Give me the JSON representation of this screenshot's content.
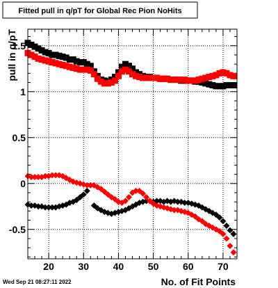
{
  "chart_data": {
    "type": "scatter",
    "title": "Fitted pull in q/pT for Global Rec Pion NoHits",
    "xlabel": "No. of Fit Points",
    "ylabel": "pull in q/pT",
    "xlim": [
      14,
      74
    ],
    "ylim": [
      -0.82,
      1.68
    ],
    "grid": true,
    "x_ticks": [
      20,
      30,
      40,
      50,
      60,
      70
    ],
    "x_tick_labels": [
      "20",
      "30",
      "40",
      "50",
      "60",
      "70"
    ],
    "y_ticks": [
      -0.5,
      0,
      0.5,
      1,
      1.5
    ],
    "y_tick_labels": [
      "-0.5",
      "0",
      "0.5",
      "1",
      "1.5"
    ],
    "series": [
      {
        "color": "#000000",
        "marker": "square",
        "x": [
          14,
          15,
          16,
          17,
          18,
          19,
          20,
          21,
          22,
          23,
          24,
          25,
          26,
          27,
          28,
          29,
          30,
          31,
          32,
          33,
          34,
          35,
          36,
          37,
          38,
          39,
          40,
          41,
          42,
          43,
          44,
          45,
          46,
          47,
          48,
          49,
          50,
          51,
          52,
          53,
          54,
          55,
          56,
          57,
          58,
          59,
          60,
          61,
          62,
          63,
          64,
          65,
          66,
          67,
          68,
          69,
          70,
          71,
          72,
          73
        ],
        "y": [
          1.53,
          1.51,
          1.49,
          1.47,
          1.45,
          1.43,
          1.42,
          1.4,
          1.4,
          1.39,
          1.38,
          1.37,
          1.35,
          1.35,
          1.33,
          1.32,
          1.32,
          1.3,
          1.28,
          1.22,
          1.17,
          1.13,
          1.12,
          1.11,
          1.13,
          1.16,
          1.21,
          1.27,
          1.3,
          1.28,
          1.25,
          1.21,
          1.19,
          1.17,
          1.16,
          1.16,
          1.15,
          1.15,
          1.14,
          1.14,
          1.14,
          1.13,
          1.13,
          1.13,
          1.12,
          1.12,
          1.12,
          1.12,
          1.11,
          1.11,
          1.1,
          1.09,
          1.08,
          1.07,
          1.06,
          1.06,
          1.06,
          1.07,
          1.07,
          1.07
        ]
      },
      {
        "color": "#ff0000",
        "marker": "square",
        "x": [
          14,
          15,
          16,
          17,
          18,
          19,
          20,
          21,
          22,
          23,
          24,
          25,
          26,
          27,
          28,
          29,
          30,
          31,
          32,
          33,
          34,
          35,
          36,
          37,
          38,
          39,
          40,
          41,
          42,
          43,
          44,
          45,
          46,
          47,
          48,
          49,
          50,
          51,
          52,
          53,
          54,
          55,
          56,
          57,
          58,
          59,
          60,
          61,
          62,
          63,
          64,
          65,
          66,
          67,
          68,
          69,
          70,
          71,
          72,
          73
        ],
        "y": [
          1.42,
          1.4,
          1.38,
          1.36,
          1.35,
          1.34,
          1.33,
          1.32,
          1.31,
          1.3,
          1.29,
          1.28,
          1.27,
          1.26,
          1.25,
          1.24,
          1.24,
          1.24,
          1.23,
          1.19,
          1.14,
          1.11,
          1.09,
          1.09,
          1.1,
          1.12,
          1.17,
          1.22,
          1.24,
          1.22,
          1.19,
          1.17,
          1.16,
          1.15,
          1.15,
          1.15,
          1.15,
          1.15,
          1.14,
          1.14,
          1.14,
          1.13,
          1.13,
          1.13,
          1.13,
          1.13,
          1.12,
          1.12,
          1.12,
          1.13,
          1.14,
          1.15,
          1.16,
          1.17,
          1.18,
          1.2,
          1.21,
          1.2,
          1.18,
          1.17
        ]
      },
      {
        "color": "#000000",
        "marker": "diamond",
        "x": [
          14,
          15,
          16,
          17,
          18,
          19,
          20,
          21,
          22,
          23,
          24,
          25,
          26,
          27,
          28,
          29,
          30,
          31,
          32,
          33,
          34,
          35,
          36,
          37,
          38,
          39,
          40,
          41,
          42,
          43,
          44,
          45,
          46,
          47,
          48,
          49,
          50,
          51,
          52,
          53,
          54,
          55,
          56,
          57,
          58,
          59,
          60,
          61,
          62,
          63,
          64,
          65,
          66,
          67,
          68,
          69,
          70,
          71,
          72,
          73
        ],
        "y": [
          -0.23,
          -0.24,
          -0.24,
          -0.25,
          -0.25,
          -0.26,
          -0.26,
          -0.26,
          -0.26,
          -0.25,
          -0.24,
          -0.23,
          -0.21,
          -0.2,
          -0.18,
          -0.15,
          -0.12,
          -0.08,
          -0.02,
          -0.24,
          -0.27,
          -0.29,
          -0.31,
          -0.32,
          -0.33,
          -0.32,
          -0.31,
          -0.3,
          -0.29,
          -0.27,
          -0.25,
          -0.23,
          -0.21,
          -0.2,
          -0.19,
          -0.19,
          -0.2,
          -0.19,
          -0.19,
          -0.2,
          -0.19,
          -0.2,
          -0.19,
          -0.2,
          -0.2,
          -0.21,
          -0.21,
          -0.22,
          -0.23,
          -0.24,
          -0.26,
          -0.28,
          -0.3,
          -0.32,
          -0.34,
          -0.37,
          -0.41,
          -0.46,
          -0.51,
          -0.55
        ]
      },
      {
        "color": "#ff0000",
        "marker": "diamond",
        "x": [
          14,
          15,
          16,
          17,
          18,
          19,
          20,
          21,
          22,
          23,
          24,
          25,
          26,
          27,
          28,
          29,
          30,
          31,
          32,
          33,
          34,
          35,
          36,
          37,
          38,
          39,
          40,
          41,
          42,
          43,
          44,
          45,
          46,
          47,
          48,
          49,
          50,
          51,
          52,
          53,
          54,
          55,
          56,
          57,
          58,
          59,
          60,
          61,
          62,
          63,
          64,
          65,
          66,
          67,
          68,
          69,
          70,
          71,
          72,
          73
        ],
        "y": [
          0.08,
          0.07,
          0.07,
          0.07,
          0.07,
          0.08,
          0.08,
          0.09,
          0.09,
          0.09,
          0.08,
          0.06,
          0.04,
          0.02,
          0.01,
          0.0,
          -0.01,
          -0.02,
          -0.02,
          -0.02,
          -0.04,
          -0.06,
          -0.09,
          -0.12,
          -0.15,
          -0.17,
          -0.2,
          -0.21,
          -0.19,
          -0.15,
          -0.1,
          -0.08,
          -0.08,
          -0.11,
          -0.15,
          -0.19,
          -0.22,
          -0.24,
          -0.25,
          -0.26,
          -0.27,
          -0.28,
          -0.29,
          -0.29,
          -0.3,
          -0.31,
          -0.32,
          -0.34,
          -0.36,
          -0.39,
          -0.41,
          -0.44,
          -0.46,
          -0.48,
          -0.5,
          -0.52,
          -0.55,
          -0.6,
          -0.68,
          -0.75
        ]
      }
    ]
  },
  "footer": {
    "timestamp": "Wed Sep 21 08:27:11 2022"
  }
}
